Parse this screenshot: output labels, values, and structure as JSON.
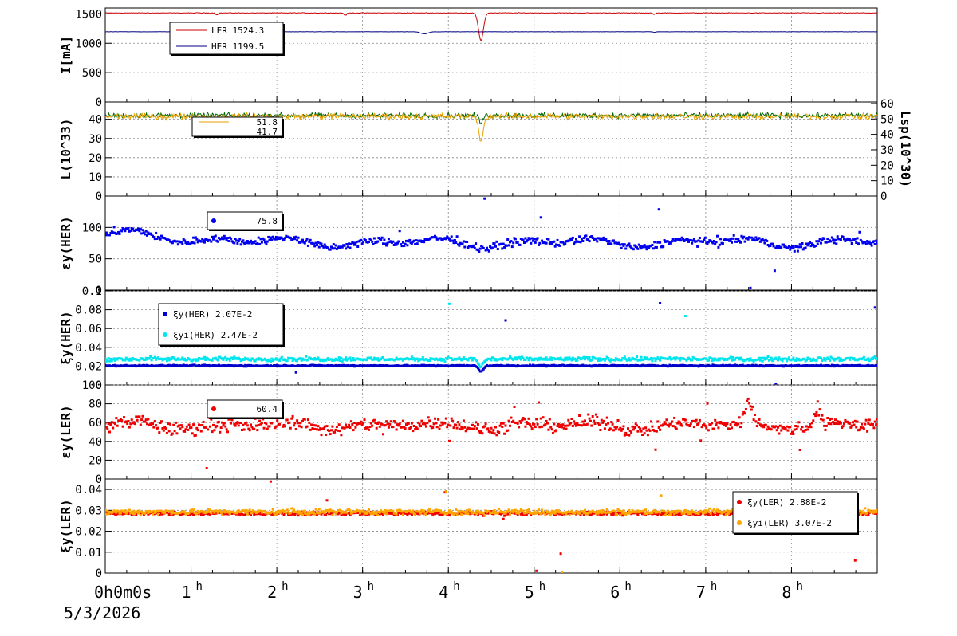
{
  "date_label": "5/3/2026",
  "chart_data": {
    "type": "line",
    "x_unit": "hours",
    "xlim": [
      0,
      9
    ],
    "x_ticks": [
      {
        "h": 0,
        "text": "0",
        "sup": "h"
      },
      {
        "h": 1,
        "text": "1",
        "sup": "h"
      },
      {
        "h": 2,
        "text": "2",
        "sup": "h"
      },
      {
        "h": 3,
        "text": "3",
        "sup": "h"
      },
      {
        "h": 4,
        "text": "4",
        "sup": "h"
      },
      {
        "h": 5,
        "text": "5",
        "sup": "h"
      },
      {
        "h": 6,
        "text": "6",
        "sup": "h"
      },
      {
        "h": 7,
        "text": "7",
        "sup": "h"
      },
      {
        "h": 8,
        "text": "8",
        "sup": "h"
      }
    ],
    "x_origin_label": "0h0m0s",
    "grid": true,
    "panels": [
      {
        "id": "current",
        "ylabel": "I[mA]",
        "ylim": [
          0,
          1600
        ],
        "yticks": [
          0,
          500,
          1000,
          1500
        ],
        "legend": [
          {
            "name": "LER",
            "value": "1524.3",
            "color": "#cc0000",
            "marker": "line"
          },
          {
            "name": "HER",
            "value": "1199.5",
            "color": "#000080",
            "marker": "line"
          }
        ],
        "series": [
          {
            "name": "LER",
            "color": "#cc0000",
            "style": "line",
            "base": 1515,
            "noise": 5,
            "dips": [
              {
                "h": 4.38,
                "depth": 470,
                "width": 0.04
              },
              {
                "h": 2.8,
                "depth": 40,
                "width": 0.02
              },
              {
                "h": 1.3,
                "depth": 30,
                "width": 0.02
              },
              {
                "h": 6.4,
                "depth": 25,
                "width": 0.02
              }
            ]
          },
          {
            "name": "HER",
            "color": "#000080",
            "style": "line",
            "base": 1195,
            "noise": 2,
            "dips": [
              {
                "h": 3.72,
                "depth": 35,
                "width": 0.06
              },
              {
                "h": 6.4,
                "depth": 10,
                "width": 0.02
              }
            ]
          }
        ]
      },
      {
        "id": "luminosity",
        "ylabel": "L(10^33)",
        "ylim": [
          0,
          49
        ],
        "yticks": [
          0,
          10,
          20,
          30,
          40
        ],
        "y2label": "Lsp(10^30)",
        "y2lim": [
          0,
          61
        ],
        "y2ticks": [
          0,
          10,
          20,
          30,
          40,
          50,
          60
        ],
        "legend": [
          {
            "name": "",
            "value": "51.8",
            "color": "#e6a000",
            "marker": "line"
          },
          {
            "name": "",
            "value": "41.7",
            "color": "#000000",
            "marker": "none"
          }
        ],
        "series": [
          {
            "name": "L",
            "color": "#006400",
            "style": "line",
            "base": 42,
            "noise": 1.2,
            "dips": [
              {
                "h": 4.38,
                "depth": 4,
                "width": 0.03
              }
            ]
          },
          {
            "name": "Lsp",
            "color": "#e6a000",
            "style": "line",
            "base": 41.5,
            "noise": 1.3,
            "dips": [
              {
                "h": 4.38,
                "depth": 12,
                "width": 0.04
              }
            ]
          }
        ]
      },
      {
        "id": "eps_her",
        "ylabel": "εy(HER)",
        "ylim": [
          0,
          150
        ],
        "yticks": [
          0,
          50,
          100
        ],
        "legend": [
          {
            "name": "",
            "value": "75.8",
            "color": "#0000ee",
            "marker": "dot"
          }
        ],
        "series": [
          {
            "name": "εy(HER)",
            "color": "#0000ee",
            "style": "points",
            "base": 75.8,
            "noise": 5,
            "wave": 9,
            "trend_start": 90,
            "trend_end_h": 2.0
          }
        ]
      },
      {
        "id": "xi_her",
        "ylabel": "ξy(HER)",
        "ylim": [
          0,
          0.1
        ],
        "yticks": [
          0,
          0.02,
          0.04,
          0.06,
          0.08,
          0.1
        ],
        "legend": [
          {
            "name": "ξy(HER)",
            "value": "2.07E-2",
            "color": "#0000cc",
            "marker": "dot"
          },
          {
            "name": "ξyi(HER)",
            "value": "2.47E-2",
            "color": "#00e5ee",
            "marker": "dot"
          }
        ],
        "series": [
          {
            "name": "ξy(HER)",
            "color": "#0000cc",
            "style": "points",
            "base": 0.0205,
            "noise": 0.0006,
            "dips": [
              {
                "h": 4.38,
                "depth": 0.006,
                "width": 0.04
              }
            ]
          },
          {
            "name": "ξyi(HER)",
            "color": "#00e5ee",
            "style": "points",
            "base": 0.0275,
            "noise": 0.0018,
            "dips": [
              {
                "h": 4.38,
                "depth": 0.008,
                "width": 0.04
              }
            ]
          }
        ]
      },
      {
        "id": "eps_ler",
        "ylabel": "εy(LER)",
        "ylim": [
          0,
          100
        ],
        "yticks": [
          0,
          20,
          40,
          60,
          80,
          100
        ],
        "legend": [
          {
            "name": "",
            "value": "60.4",
            "color": "#ee0000",
            "marker": "dot"
          }
        ],
        "series": [
          {
            "name": "εy(LER)",
            "color": "#ee0000",
            "style": "points",
            "base": 57,
            "noise": 6,
            "wave": 5,
            "bumps": [
              {
                "h": 7.5,
                "height": 25,
                "width": 0.05
              },
              {
                "h": 8.3,
                "height": 18,
                "width": 0.05
              }
            ]
          }
        ]
      },
      {
        "id": "xi_ler",
        "ylabel": "ξy(LER)",
        "ylim": [
          0,
          0.045
        ],
        "yticks": [
          0,
          0.01,
          0.02,
          0.03,
          0.04
        ],
        "legend": [
          {
            "name": "ξy(LER)",
            "value": "2.88E-2",
            "color": "#ee0000",
            "marker": "dot"
          },
          {
            "name": "ξyi(LER)",
            "value": "3.07E-2",
            "color": "#ffa500",
            "marker": "dot"
          }
        ],
        "series": [
          {
            "name": "ξy(LER)",
            "color": "#ee0000",
            "style": "points",
            "base": 0.0285,
            "noise": 0.0007
          },
          {
            "name": "ξyi(LER)",
            "color": "#ffa500",
            "style": "points",
            "base": 0.0292,
            "noise": 0.0011
          }
        ]
      }
    ]
  }
}
